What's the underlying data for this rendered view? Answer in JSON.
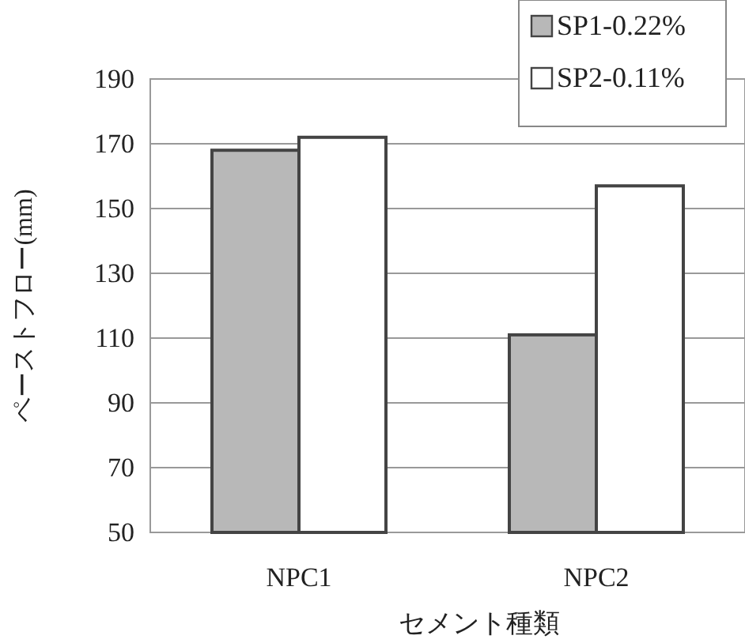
{
  "chart_data": {
    "type": "bar",
    "xlabel": "セメント種類",
    "ylabel": "ペーストフロー(mm)",
    "categories": [
      "NPC1",
      "NPC2"
    ],
    "series": [
      {
        "name": "SP1-0.22%",
        "color": "#b8b8b8",
        "values": [
          168,
          111
        ]
      },
      {
        "name": "SP2-0.11%",
        "color": "#ffffff",
        "values": [
          172,
          157
        ]
      }
    ],
    "ylim": [
      50,
      190
    ],
    "yticks": [
      50,
      70,
      90,
      110,
      130,
      150,
      170,
      190
    ],
    "grid": "y",
    "legend": "top right"
  }
}
